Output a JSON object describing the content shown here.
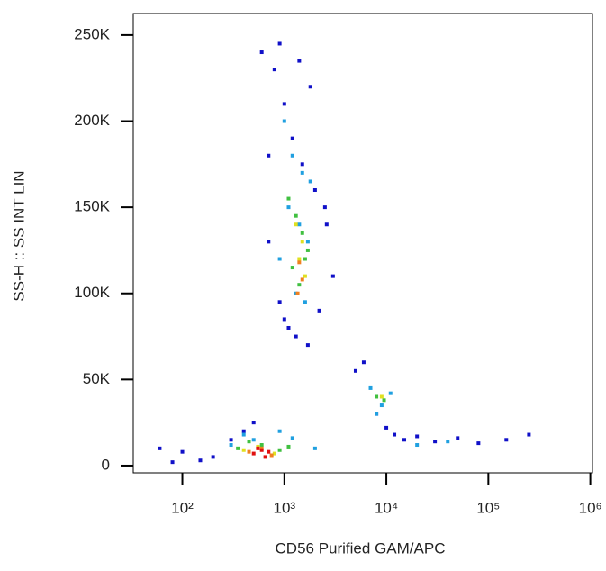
{
  "chart_data": {
    "type": "scatter",
    "x_label": "CD56 Purified GAM/APC",
    "y_label": "SS-H :: SS INT LIN",
    "x_scale": "log",
    "xlim": [
      33,
      1050000
    ],
    "xticks": [
      {
        "value": 100,
        "label": "10²"
      },
      {
        "value": 1000,
        "label": "10³"
      },
      {
        "value": 10000,
        "label": "10⁴"
      },
      {
        "value": 100000,
        "label": "10⁵"
      },
      {
        "value": 1000000,
        "label": "10⁶"
      }
    ],
    "ylim": [
      -4200,
      262500
    ],
    "yticks": [
      0,
      {
        "value": 50000,
        "label": "50K"
      },
      {
        "value": 100000,
        "label": "100K"
      },
      {
        "value": 150000,
        "label": "150K"
      },
      {
        "value": 200000,
        "label": "200K"
      },
      {
        "value": 250000,
        "label": "250K"
      }
    ],
    "grid": false,
    "series": [
      {
        "color": "#1010c8",
        "x": [
          600,
          800,
          1000,
          1200,
          1500,
          2000,
          2500,
          700,
          900,
          1100,
          1300,
          1700,
          2200,
          3000,
          500,
          400,
          300,
          200,
          150,
          100,
          80,
          60,
          5000,
          6000,
          8000,
          10000,
          12000,
          15000,
          20000,
          30000,
          50000,
          80000,
          150000,
          250000,
          900,
          1400,
          1800,
          2600,
          700,
          1000
        ],
        "y": [
          240000,
          230000,
          210000,
          190000,
          175000,
          160000,
          150000,
          180000,
          95000,
          80000,
          75000,
          70000,
          90000,
          110000,
          25000,
          20000,
          15000,
          5000,
          3000,
          8000,
          2000,
          10000,
          55000,
          60000,
          30000,
          22000,
          18000,
          15000,
          17000,
          14000,
          16000,
          13000,
          15000,
          18000,
          245000,
          235000,
          220000,
          140000,
          130000,
          85000
        ]
      },
      {
        "color": "#20a0e0",
        "x": [
          1000,
          1200,
          1500,
          1800,
          1100,
          1400,
          1700,
          900,
          1300,
          1600,
          300,
          400,
          500,
          900,
          1200,
          2000,
          7000,
          9000,
          11000,
          8000,
          20000,
          40000
        ],
        "y": [
          200000,
          180000,
          170000,
          165000,
          150000,
          140000,
          130000,
          120000,
          100000,
          95000,
          12000,
          18000,
          15000,
          20000,
          16000,
          10000,
          45000,
          35000,
          42000,
          30000,
          12000,
          14000
        ]
      },
      {
        "color": "#40c040",
        "x": [
          1100,
          1300,
          1500,
          1700,
          1200,
          1400,
          1600,
          350,
          450,
          600,
          900,
          1100,
          8000,
          9500
        ],
        "y": [
          155000,
          145000,
          135000,
          125000,
          115000,
          105000,
          120000,
          10000,
          14000,
          12000,
          9000,
          11000,
          40000,
          38000
        ]
      },
      {
        "color": "#e0e020",
        "x": [
          1300,
          1500,
          1400,
          1600,
          400,
          550,
          800,
          9000
        ],
        "y": [
          140000,
          130000,
          120000,
          110000,
          9000,
          11000,
          7000,
          40000
        ]
      },
      {
        "color": "#f08020",
        "x": [
          1400,
          1500,
          1350,
          450,
          600,
          750
        ],
        "y": [
          118000,
          108000,
          100000,
          8000,
          10000,
          6000
        ]
      },
      {
        "color": "#e01010",
        "x": [
          500,
          600,
          700,
          650,
          550
        ],
        "y": [
          7000,
          9000,
          8000,
          5000,
          10000
        ]
      }
    ]
  }
}
